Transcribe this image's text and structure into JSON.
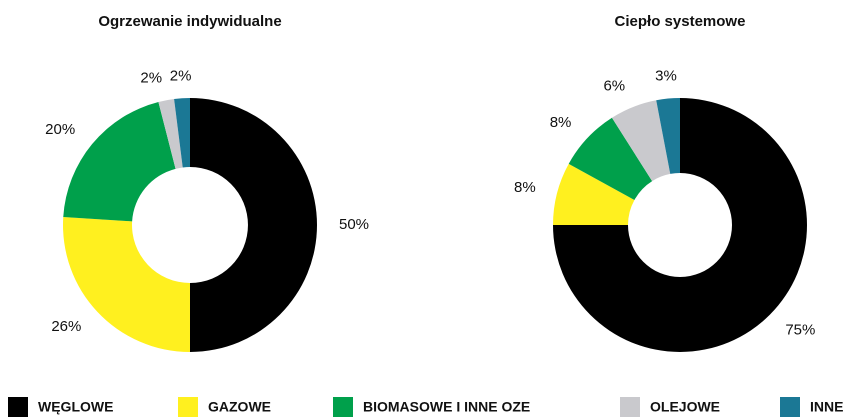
{
  "chart_data": [
    {
      "type": "donut",
      "title": "Ogrzewanie indywidualne",
      "categories": [
        "WĘGLOWE",
        "GAZOWE",
        "BIOMASOWE I INNE OZE",
        "OLEJOWE",
        "INNE"
      ],
      "values": [
        50,
        26,
        20,
        2,
        2
      ],
      "value_labels": [
        "50%",
        "26%",
        "20%",
        "2%",
        "2%"
      ],
      "colors": [
        "#000000",
        "#fff01f",
        "#00a04b",
        "#c9c9cd",
        "#1b7895"
      ]
    },
    {
      "type": "donut",
      "title": "Ciepło systemowe",
      "categories": [
        "WĘGLOWE",
        "GAZOWE",
        "BIOMASOWE I INNE OZE",
        "OLEJOWE",
        "INNE"
      ],
      "values": [
        75,
        8,
        8,
        6,
        3
      ],
      "value_labels": [
        "75%",
        "8%",
        "8%",
        "6%",
        "3%"
      ],
      "colors": [
        "#000000",
        "#fff01f",
        "#00a04b",
        "#c9c9cd",
        "#1b7895"
      ]
    }
  ]
}
